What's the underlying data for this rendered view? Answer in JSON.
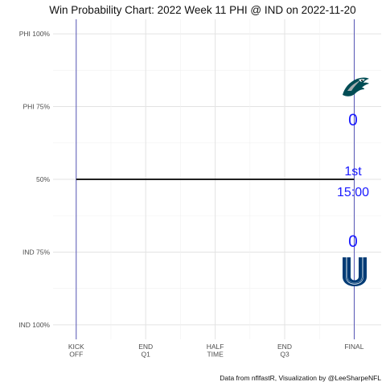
{
  "chart_data": {
    "type": "line",
    "title": "Win Probability Chart: 2022 Week 11 PHI @ IND on 2022-11-20",
    "y_ticks": [
      {
        "label": "PHI 100%",
        "value": 1.0
      },
      {
        "label": "PHI 75%",
        "value": 0.75
      },
      {
        "label": "50%",
        "value": 0.5
      },
      {
        "label": "IND 75%",
        "value": 0.25
      },
      {
        "label": "IND 100%",
        "value": 0.0
      }
    ],
    "x_ticks": [
      {
        "lines": [
          "KICK",
          "OFF"
        ],
        "value": 0
      },
      {
        "lines": [
          "END",
          "Q1"
        ],
        "value": 900
      },
      {
        "lines": [
          "HALF",
          "TIME"
        ],
        "value": 1800
      },
      {
        "lines": [
          "END",
          "Q3"
        ],
        "value": 2700
      },
      {
        "lines": [
          "FINAL"
        ],
        "value": 3600
      }
    ],
    "xlim": [
      -300,
      3950
    ],
    "ylim": [
      -0.05,
      1.05
    ],
    "grid": true,
    "series": [
      {
        "x": [
          0,
          3600
        ],
        "y": [
          0.5,
          0.5
        ],
        "color": "#000000"
      }
    ],
    "vlines": [
      0,
      3600
    ],
    "vline_color": "#3333aa",
    "score": {
      "away": "0",
      "home": "0"
    },
    "clock": {
      "quarter": "1st",
      "time": "15:00"
    },
    "caption": "Data from nflfastR, Visualization by @LeeSharpeNFL",
    "text_color": "#1a1aff",
    "teams": {
      "away": {
        "abbr": "PHI",
        "icon": "eagles-logo-icon",
        "color": "#004c54"
      },
      "home": {
        "abbr": "IND",
        "icon": "colts-logo-icon",
        "color": "#003b75"
      }
    }
  }
}
